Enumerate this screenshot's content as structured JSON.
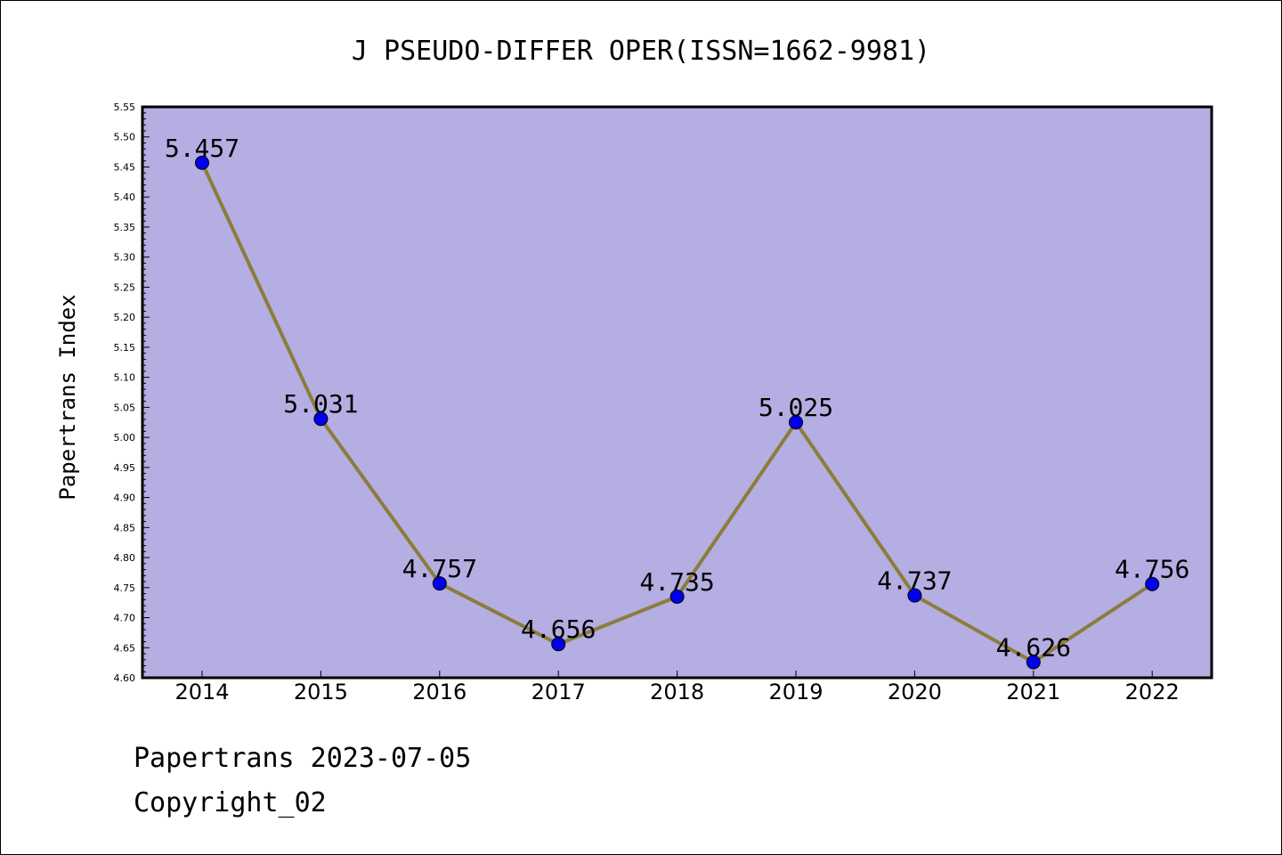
{
  "chart_data": {
    "type": "line",
    "title": "J PSEUDO-DIFFER OPER(ISSN=1662-9981)",
    "xlabel": "",
    "ylabel": "Papertrans Index",
    "categories": [
      "2014",
      "2015",
      "2016",
      "2017",
      "2018",
      "2019",
      "2020",
      "2021",
      "2022"
    ],
    "series": [
      {
        "values": [
          5.457,
          5.031,
          4.757,
          4.656,
          4.735,
          5.025,
          4.737,
          4.626,
          4.756
        ],
        "labels": [
          "5.457",
          "5.031",
          "4.757",
          "4.656",
          "4.735",
          "5.025",
          "4.737",
          "4.626",
          "4.756"
        ]
      }
    ],
    "ylim": [
      4.6,
      5.55
    ],
    "yticks": [
      "4.60",
      "4.65",
      "4.70",
      "4.75",
      "4.80",
      "4.85",
      "4.90",
      "4.95",
      "5.00",
      "5.05",
      "5.10",
      "5.15",
      "5.20",
      "5.25",
      "5.30",
      "5.35",
      "5.40",
      "5.45",
      "5.50",
      "5.55"
    ],
    "grid": false,
    "colors": {
      "plot_background": "#b4aee2",
      "line": "#8b7d3a",
      "marker": "#0000ee"
    }
  },
  "footer": {
    "line1": "Papertrans 2023-07-05",
    "line2": "Copyright_02"
  }
}
